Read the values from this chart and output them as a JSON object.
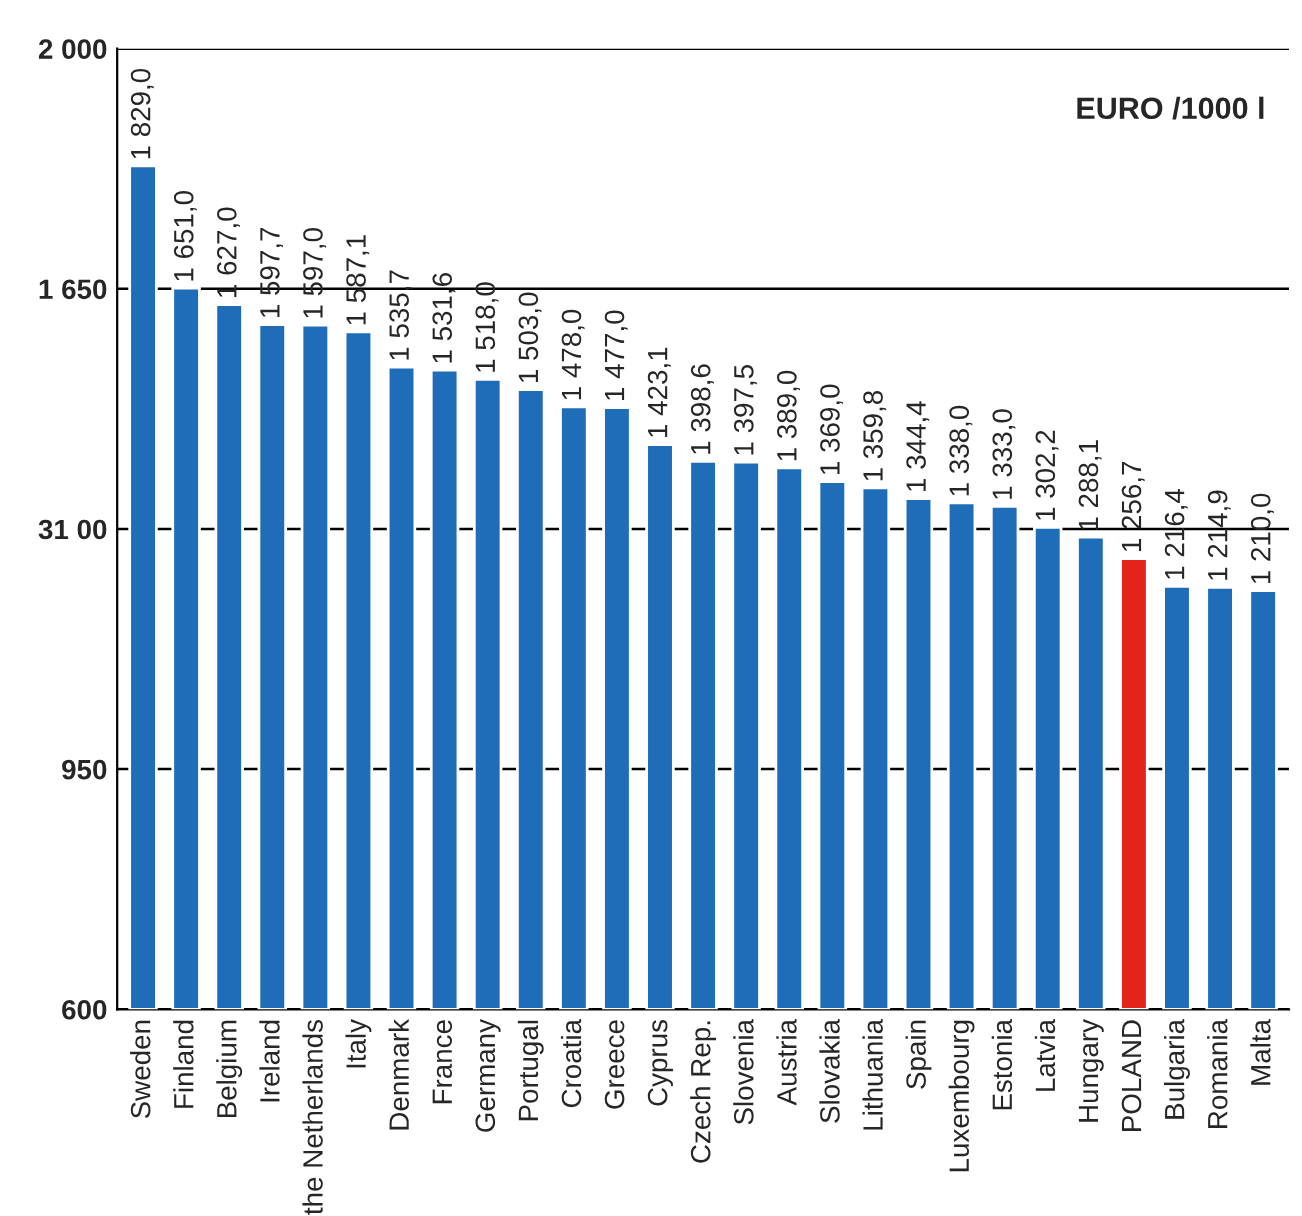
{
  "chart_data": {
    "type": "bar",
    "categories": [
      "Sweden",
      "Finland",
      "Belgium",
      "Ireland",
      "the Netherlands",
      "Italy",
      "Denmark",
      "France",
      "Germany",
      "Portugal",
      "Croatia",
      "Greece",
      "Cyprus",
      "Czech Rep.",
      "Slovenia",
      "Austria",
      "Slovakia",
      "Lithuania",
      "Spain",
      "Luxembourg",
      "Estonia",
      "Latvia",
      "Hungary",
      "POLAND",
      "Bulgaria",
      "Romania",
      "Malta"
    ],
    "values": [
      1829.0,
      1651.0,
      1627.0,
      1597.7,
      1597.0,
      1587.1,
      1535.7,
      1531.6,
      1518.0,
      1503.0,
      1478.0,
      1477.0,
      1423.1,
      1398.6,
      1397.5,
      1389.0,
      1369.0,
      1359.8,
      1344.4,
      1338.0,
      1333.0,
      1302.2,
      1288.1,
      1256.7,
      1216.4,
      1214.9,
      1210.0
    ],
    "value_labels": [
      "1 829,0",
      "1 651,0",
      "1 627,0",
      "1 597,7",
      "1 597,0",
      "1 587,1",
      "1 535,7",
      "1 531,6",
      "1 518,0",
      "1 503,0",
      "1 478,0",
      "1 477,0",
      "1 423,1",
      "1 398,6",
      "1 397,5",
      "1 389,0",
      "1 369,0",
      "1 359,8",
      "1 344,4",
      "1 338,0",
      "1 333,0",
      "1 302,2",
      "1 288,1",
      "1 256,7",
      "1 216,4",
      "1 214,9",
      "1 210,0"
    ],
    "colors": [
      "#1f6db8",
      "#1f6db8",
      "#1f6db8",
      "#1f6db8",
      "#1f6db8",
      "#1f6db8",
      "#1f6db8",
      "#1f6db8",
      "#1f6db8",
      "#1f6db8",
      "#1f6db8",
      "#1f6db8",
      "#1f6db8",
      "#1f6db8",
      "#1f6db8",
      "#1f6db8",
      "#1f6db8",
      "#1f6db8",
      "#1f6db8",
      "#1f6db8",
      "#1f6db8",
      "#1f6db8",
      "#1f6db8",
      "#e3241b",
      "#1f6db8",
      "#1f6db8",
      "#1f6db8"
    ],
    "ylim": [
      600,
      2000
    ],
    "yticks": [
      600,
      950,
      {
        "value": 1300,
        "label": "31 00"
      },
      {
        "value": 1650,
        "label": "1 650"
      },
      {
        "value": 2000,
        "label": "2 000"
      }
    ],
    "grid": "y",
    "annotations": [
      "EURO /1000 l"
    ]
  }
}
